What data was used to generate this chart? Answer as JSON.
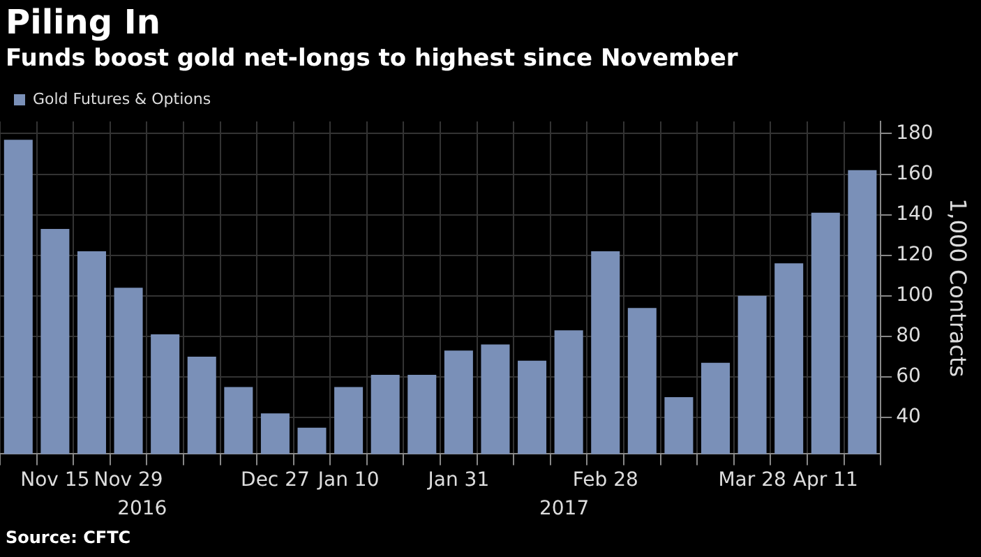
{
  "chart_data": {
    "type": "bar",
    "title": "Piling In",
    "subtitle": "Funds boost gold net-longs to highest since November",
    "ylabel": "1,000 Contracts",
    "categories": [
      null,
      "Nov 15",
      null,
      "Nov 29",
      null,
      null,
      null,
      "Dec 27",
      null,
      "Jan 10",
      null,
      null,
      "Jan 31",
      null,
      null,
      null,
      "Feb 28",
      null,
      null,
      null,
      "Mar 28",
      null,
      "Apr 11",
      null
    ],
    "series": [
      {
        "name": "Gold Futures & Options",
        "color": "#7a90b8",
        "values": [
          177,
          133,
          122,
          104,
          81,
          70,
          55,
          42,
          35,
          55,
          61,
          61,
          73,
          76,
          68,
          83,
          122,
          94,
          50,
          67,
          100,
          116,
          141,
          162
        ]
      }
    ],
    "ylim": [
      22,
      186
    ],
    "yticks": [
      40,
      60,
      80,
      100,
      120,
      140,
      160,
      180
    ],
    "grid": true,
    "legend": "top left",
    "annotations": [
      "2016",
      "2017",
      "Source: CFTC"
    ]
  }
}
